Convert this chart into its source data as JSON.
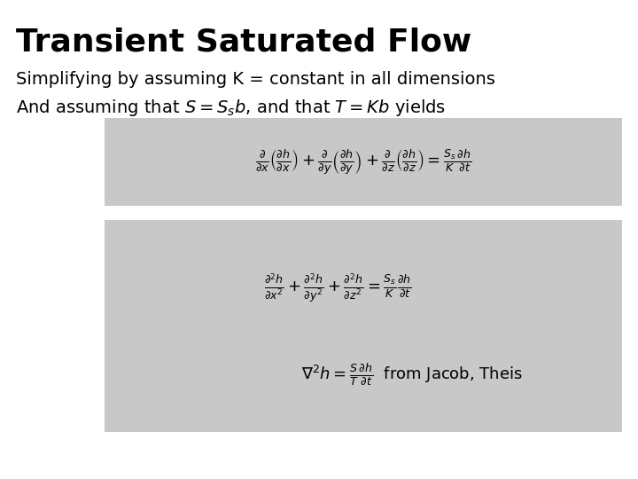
{
  "title": "Transient Saturated Flow",
  "title_fontsize": 26,
  "title_weight": "bold",
  "bg_color": "#ffffff",
  "box_color": "#c8c8c8",
  "text_color": "#000000",
  "line1": "Simplifying by assuming K = constant in all dimensions",
  "line2": "And assuming that $S = S_s b$, and that $T = Kb$ yields",
  "eq1": "$\\frac{\\partial}{\\partial x}\\left(\\frac{\\partial h}{\\partial x}\\right) + \\frac{\\partial}{\\partial y}\\left(\\frac{\\partial h}{\\partial y}\\right) + \\frac{\\partial}{\\partial z}\\left(\\frac{\\partial h}{\\partial z}\\right) = \\frac{S_s}{K}\\frac{\\partial h}{\\partial t}$",
  "eq2": "$\\frac{\\partial^2 h}{\\partial x^2} + \\frac{\\partial^2 h}{\\partial y^2} + \\frac{\\partial^2 h}{\\partial z^2} = \\frac{S_s}{K}\\frac{\\partial h}{\\partial t}$",
  "eq3": "$\\nabla^2 h = \\frac{S}{T}\\frac{\\partial h}{\\partial t}$",
  "eq3_suffix": "  from Jacob, Theis",
  "title_fontsize_pt": 26,
  "text_fontsize_pt": 14,
  "eq_fontsize_pt": 13
}
